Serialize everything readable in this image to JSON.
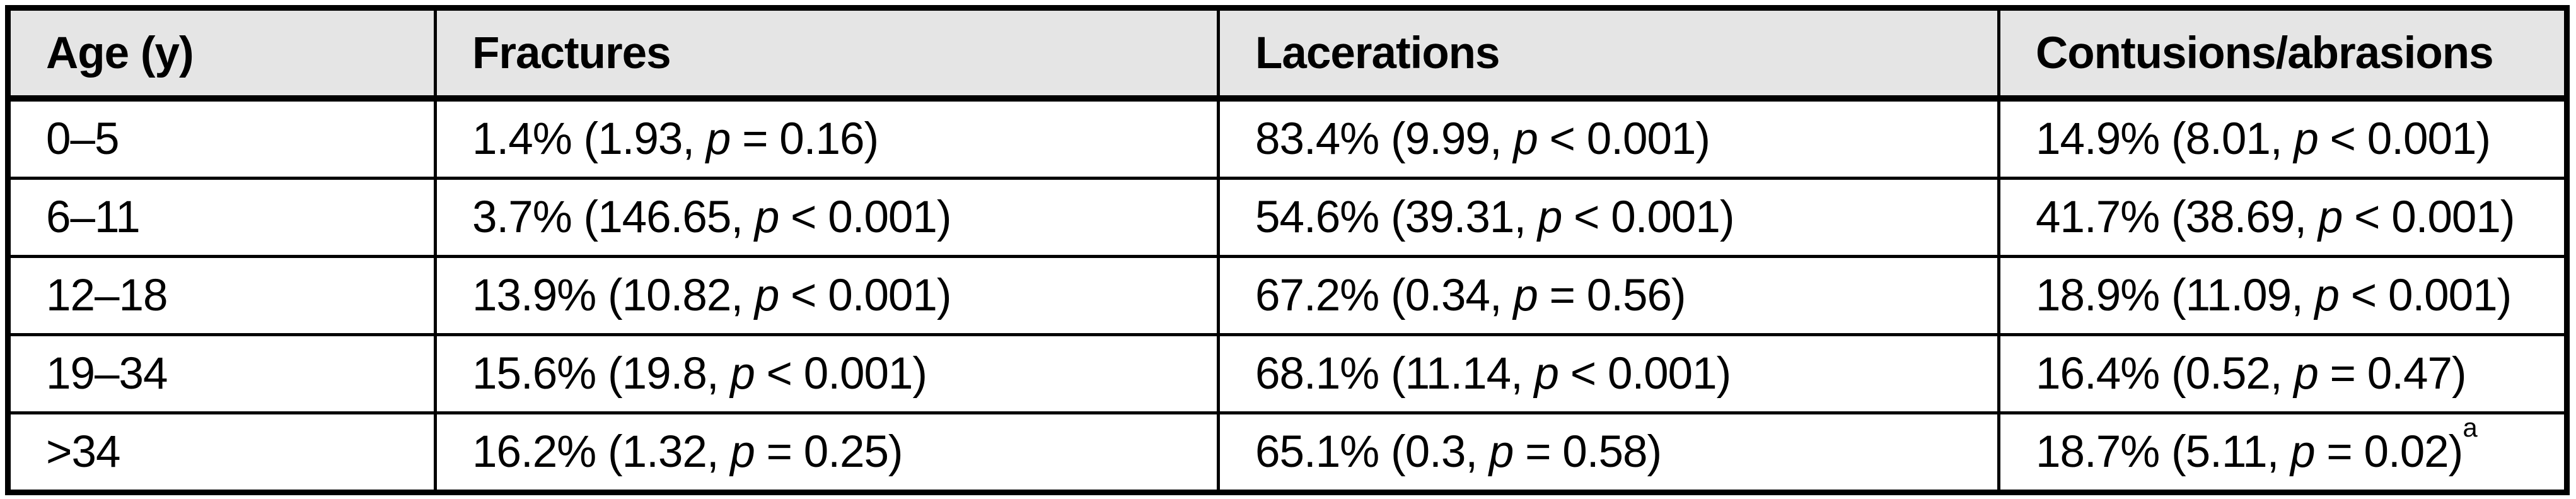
{
  "colors": {
    "header_bg": "#e5e5e5",
    "border": "#000000",
    "text": "#000000",
    "row_bg": "#ffffff"
  },
  "table": {
    "columns": [
      {
        "label": "Age (y)"
      },
      {
        "label": "Fractures"
      },
      {
        "label": "Lacerations"
      },
      {
        "label": "Contusions/abrasions"
      }
    ],
    "rows": [
      {
        "age": "0–5",
        "cells": [
          {
            "before": "1.4% (1.93, ",
            "p": "p",
            "after": " = 0.16)",
            "sup": ""
          },
          {
            "before": "83.4% (9.99, ",
            "p": "p",
            "after": " < 0.001)",
            "sup": ""
          },
          {
            "before": "14.9% (8.01, ",
            "p": "p",
            "after": " < 0.001)",
            "sup": ""
          }
        ]
      },
      {
        "age": "6–11",
        "cells": [
          {
            "before": "3.7% (146.65, ",
            "p": "p",
            "after": " < 0.001)",
            "sup": ""
          },
          {
            "before": "54.6% (39.31, ",
            "p": "p",
            "after": " < 0.001)",
            "sup": ""
          },
          {
            "before": "41.7% (38.69, ",
            "p": "p",
            "after": " < 0.001)",
            "sup": ""
          }
        ]
      },
      {
        "age": "12–18",
        "cells": [
          {
            "before": "13.9% (10.82, ",
            "p": "p",
            "after": " < 0.001)",
            "sup": ""
          },
          {
            "before": "67.2% (0.34, ",
            "p": "p",
            "after": " = 0.56)",
            "sup": ""
          },
          {
            "before": "18.9% (11.09, ",
            "p": "p",
            "after": " < 0.001)",
            "sup": ""
          }
        ]
      },
      {
        "age": "19–34",
        "cells": [
          {
            "before": "15.6% (19.8, ",
            "p": "p",
            "after": " < 0.001)",
            "sup": ""
          },
          {
            "before": "68.1% (11.14, ",
            "p": "p",
            "after": " < 0.001)",
            "sup": ""
          },
          {
            "before": "16.4% (0.52, ",
            "p": "p",
            "after": " = 0.47)",
            "sup": ""
          }
        ]
      },
      {
        "age": ">34",
        "cells": [
          {
            "before": "16.2% (1.32, ",
            "p": "p",
            "after": " = 0.25)",
            "sup": ""
          },
          {
            "before": "65.1% (0.3, ",
            "p": "p",
            "after": " = 0.58)",
            "sup": ""
          },
          {
            "before": "18.7% (5.11, ",
            "p": "p",
            "after": " = 0.02)",
            "sup": "a"
          }
        ]
      }
    ]
  }
}
